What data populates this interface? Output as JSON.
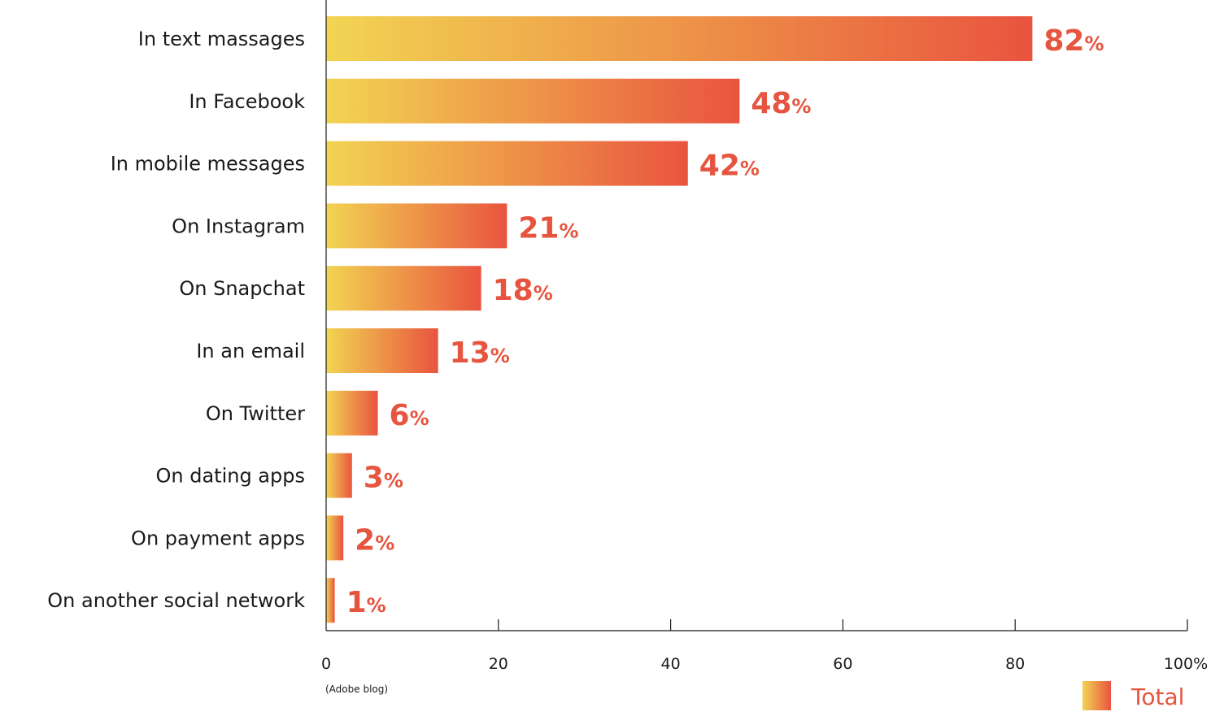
{
  "chart_data": {
    "type": "bar",
    "orientation": "horizontal",
    "categories": [
      "In text massages",
      "In Facebook",
      "In mobile messages",
      "On Instagram",
      "On Snapchat",
      "In an email",
      "On Twitter",
      "On dating apps",
      "On payment apps",
      "On another social network"
    ],
    "series": [
      {
        "name": "Total",
        "values": [
          82,
          48,
          42,
          21,
          18,
          13,
          6,
          3,
          2,
          1
        ]
      }
    ],
    "value_suffix": "%",
    "xlim": [
      0,
      100
    ],
    "x_ticks": [
      "0",
      "20",
      "40",
      "60",
      "80",
      "100%"
    ],
    "source_note": "(Adobe blog)",
    "legend_position": "bottom-right",
    "grid": false
  },
  "colors": {
    "gradient_start": "#f2d452",
    "gradient_end": "#e9543f",
    "value_text": "#e6553f",
    "axis": "#1a1a1a"
  }
}
